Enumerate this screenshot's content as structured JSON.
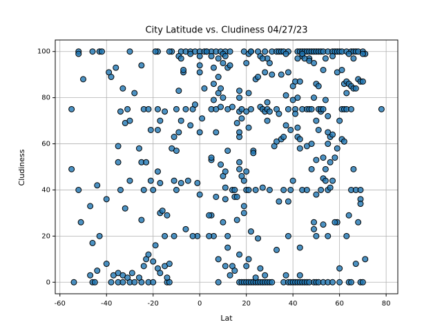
{
  "chart_data": {
    "type": "scatter",
    "title": "City Latitude vs. Cludiness 04/27/23",
    "x_label": "Lat",
    "y_label": "Cludiness",
    "xlim": [
      -62,
      85
    ],
    "ylim": [
      -5,
      105
    ],
    "xticks": [
      -60,
      -40,
      -20,
      0,
      20,
      40,
      60,
      80
    ],
    "yticks": [
      0,
      20,
      40,
      60,
      80,
      100
    ],
    "grid": true,
    "series": [
      {
        "color": "#1f77b4",
        "x": [
          -52,
          -46,
          -43,
          -42,
          -30,
          -18,
          -12,
          -8,
          -6,
          -4,
          -2,
          0,
          3,
          5,
          7,
          9,
          11,
          13,
          19,
          22,
          25,
          28,
          31,
          33,
          34,
          35,
          36,
          38,
          42,
          43,
          44,
          45,
          46,
          47,
          48,
          49,
          50,
          51,
          52,
          53,
          55,
          57,
          58,
          59,
          60,
          61,
          63,
          65,
          66,
          67,
          68,
          70,
          -54,
          -46,
          -45,
          -38,
          -35,
          -33,
          -30,
          -28,
          -25,
          -22,
          -20,
          -14,
          -13,
          8,
          17,
          18,
          19,
          20,
          21,
          22,
          23,
          24,
          25,
          26,
          27,
          28,
          29,
          30,
          31,
          36,
          38,
          39,
          40,
          41,
          42,
          43,
          44,
          45,
          46,
          47,
          49,
          50,
          51,
          53,
          55,
          57,
          60,
          64,
          65,
          69,
          70,
          -52,
          -9,
          -8,
          -4,
          0,
          5,
          8,
          10,
          21,
          26,
          29,
          37,
          44,
          47,
          54,
          64,
          71,
          -47,
          -44,
          -40,
          -37,
          -35,
          -33,
          -31,
          -29,
          -26,
          -24,
          -23,
          -22,
          -20,
          -19,
          -18,
          -17,
          -15,
          -14,
          -13,
          -11,
          -1,
          6,
          5,
          8,
          11,
          12,
          13,
          14,
          15,
          16,
          17,
          20,
          21,
          22,
          24,
          25,
          26,
          28,
          33,
          37,
          38,
          43,
          43,
          50,
          53,
          55,
          59,
          60,
          63,
          67,
          71,
          -55,
          -55,
          -52,
          -51,
          -50,
          -47,
          -46,
          -44,
          -43,
          -40,
          -39,
          -38,
          -36,
          -35,
          -35,
          -34,
          -34,
          -33,
          -32,
          -32,
          -31,
          -30,
          -30,
          -28,
          -26,
          -25,
          -25,
          -25,
          -24,
          -24,
          -23,
          -22,
          -21,
          -21,
          -20,
          -19,
          -18,
          -18,
          -18,
          -17,
          -17,
          -17,
          -16,
          -15,
          -15,
          -14,
          -13,
          -12,
          -11,
          -11,
          -10,
          -10,
          -10,
          -9,
          -9,
          -8,
          -8,
          -7,
          -7,
          -6,
          -6,
          -5,
          -4,
          -3,
          -3,
          -2,
          -1,
          0,
          0,
          0,
          0,
          1,
          2,
          2,
          3,
          4,
          4,
          5,
          5,
          5,
          6,
          6,
          6,
          7,
          7,
          7,
          8,
          8,
          9,
          9,
          9,
          10,
          10,
          10,
          10,
          11,
          11,
          11,
          11,
          12,
          12,
          12,
          12,
          13,
          14,
          14,
          15,
          15,
          16,
          16,
          17,
          17,
          17,
          17,
          17,
          17,
          17,
          18,
          18,
          18,
          19,
          19,
          19,
          20,
          20,
          20,
          20,
          21,
          21,
          21,
          22,
          22,
          23,
          23,
          24,
          24,
          25,
          26,
          27,
          27,
          27,
          28,
          28,
          29,
          29,
          29,
          30,
          30,
          30,
          31,
          32,
          33,
          33,
          34,
          34,
          35,
          35,
          36,
          36,
          37,
          37,
          38,
          38,
          38,
          39,
          39,
          40,
          40,
          40,
          41,
          41,
          41,
          42,
          42,
          42,
          42,
          43,
          43,
          43,
          44,
          44,
          44,
          45,
          46,
          46,
          46,
          47,
          47,
          48,
          48,
          48,
          49,
          49,
          49,
          49,
          50,
          50,
          50,
          50,
          51,
          51,
          51,
          52,
          52,
          52,
          53,
          53,
          53,
          53,
          54,
          54,
          54,
          55,
          55,
          55,
          55,
          56,
          56,
          56,
          57,
          57,
          57,
          58,
          58,
          59,
          59,
          60,
          61,
          61,
          61,
          62,
          62,
          62,
          63,
          63,
          63,
          64,
          64,
          65,
          65,
          65,
          66,
          66,
          66,
          67,
          67,
          68,
          68,
          69,
          69,
          69,
          69,
          70,
          70,
          78
        ],
        "values": [
          100,
          100,
          100,
          100,
          100,
          100,
          100,
          100,
          100,
          100,
          100,
          100,
          100,
          100,
          100,
          100,
          100,
          100,
          100,
          100,
          100,
          100,
          100,
          100,
          100,
          100,
          100,
          100,
          100,
          100,
          100,
          100,
          100,
          100,
          100,
          100,
          100,
          100,
          100,
          100,
          100,
          100,
          100,
          100,
          100,
          100,
          100,
          100,
          100,
          100,
          100,
          100,
          0,
          0,
          0,
          0,
          0,
          0,
          0,
          0,
          0,
          0,
          0,
          0,
          0,
          0,
          0,
          0,
          0,
          0,
          0,
          0,
          0,
          0,
          0,
          0,
          0,
          0,
          0,
          0,
          0,
          0,
          0,
          0,
          0,
          0,
          0,
          0,
          0,
          0,
          0,
          0,
          0,
          0,
          0,
          0,
          0,
          0,
          0,
          0,
          0,
          0,
          0,
          99,
          98,
          97,
          99,
          98,
          98,
          97,
          99,
          99,
          98,
          97,
          99,
          98,
          97,
          97,
          99,
          99,
          3,
          5,
          8,
          3,
          4,
          3,
          2,
          4,
          2,
          7,
          10,
          12,
          9,
          16,
          6,
          4,
          7,
          2,
          8,
          20,
          20,
          20,
          29,
          10,
          7,
          15,
          3,
          7,
          5,
          27,
          12,
          7,
          10,
          22,
          2,
          19,
          6,
          3,
          14,
          3,
          20,
          15,
          3,
          20,
          25,
          20,
          26,
          6,
          20,
          8,
          10,
          75,
          49,
          40,
          26,
          88,
          33,
          17,
          42,
          20,
          36,
          91,
          89,
          93,
          59,
          52,
          74,
          40,
          84,
          69,
          32,
          75,
          70,
          44,
          82,
          58,
          52,
          27,
          94,
          75,
          40,
          52,
          75,
          44,
          66,
          40,
          100,
          75,
          66,
          48,
          70,
          43,
          30,
          31,
          74,
          20,
          29,
          100,
          58,
          63,
          44,
          75,
          57,
          40,
          65,
          83,
          70,
          43,
          91,
          92,
          75,
          23,
          44,
          68,
          20,
          75,
          77,
          43,
          91,
          65,
          38,
          94,
          71,
          84,
          100,
          100,
          20,
          29,
          53,
          54,
          75,
          86,
          79,
          93,
          65,
          75,
          37,
          89,
          82,
          84,
          76,
          51,
          95,
          80,
          26,
          46,
          48,
          41,
          36,
          98,
          75,
          93,
          57,
          20,
          94,
          76,
          40,
          37,
          40,
          69,
          37,
          80,
          83,
          74,
          63,
          52,
          49,
          65,
          71,
          75,
          46,
          44,
          30,
          33,
          74,
          48,
          40,
          95,
          82,
          40,
          67,
          100,
          75,
          57,
          56,
          40,
          88,
          89,
          76,
          75,
          41,
          97,
          74,
          91,
          78,
          75,
          70,
          40,
          74,
          95,
          90,
          59,
          75,
          61,
          73,
          35,
          62,
          90,
          40,
          63,
          81,
          68,
          91,
          75,
          35,
          66,
          40,
          85,
          79,
          44,
          87,
          75,
          73,
          80,
          67,
          63,
          97,
          62,
          58,
          87,
          75,
          40,
          99,
          97,
          75,
          40,
          59,
          75,
          96,
          75,
          60,
          49,
          95,
          80,
          23,
          26,
          70,
          86,
          53,
          38,
          75,
          66,
          85,
          74,
          40,
          75,
          75,
          45,
          92,
          54,
          79,
          49,
          44,
          72,
          65,
          60,
          40,
          63,
          52,
          41,
          64,
          44,
          98,
          54,
          26,
          91,
          58,
          70,
          75,
          92,
          62,
          86,
          61,
          75,
          87,
          82,
          75,
          86,
          29,
          85,
          75,
          40,
          49,
          84,
          97,
          40,
          84,
          88,
          26,
          40,
          36,
          34,
          87,
          87,
          99,
          75
        ]
      }
    ]
  }
}
